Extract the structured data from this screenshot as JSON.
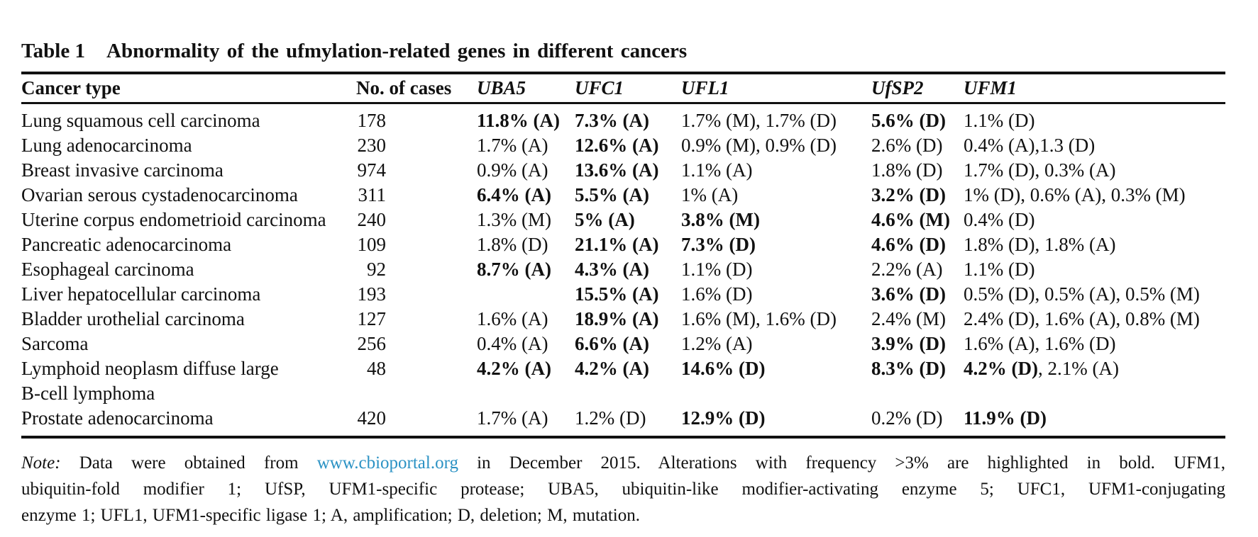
{
  "table": {
    "title_label": "Table 1",
    "title_text": "Abnormality of the ufmylation-related genes in different cancers",
    "columns": [
      {
        "label": "Cancer type",
        "italic": false
      },
      {
        "label": "No. of cases",
        "italic": false
      },
      {
        "label": "UBA5",
        "italic": true
      },
      {
        "label": "UFC1",
        "italic": true
      },
      {
        "label": "UFL1",
        "italic": true
      },
      {
        "label": "UfSP2",
        "italic": true
      },
      {
        "label": "UFM1",
        "italic": true
      }
    ],
    "rows": [
      {
        "cancer_type": "Lung squamous cell carcinoma",
        "cases": "178",
        "UBA5": [
          {
            "text": "11.8% (A)",
            "bold": true
          }
        ],
        "UFC1": [
          {
            "text": "7.3% (A)",
            "bold": true
          }
        ],
        "UFL1": [
          {
            "text": "1.7% (M), 1.7% (D)",
            "bold": false
          }
        ],
        "UfSP2": [
          {
            "text": "5.6% (D)",
            "bold": true
          }
        ],
        "UFM1": [
          {
            "text": "1.1% (D)",
            "bold": false
          }
        ]
      },
      {
        "cancer_type": "Lung adenocarcinoma",
        "cases": "230",
        "UBA5": [
          {
            "text": "1.7% (A)",
            "bold": false
          }
        ],
        "UFC1": [
          {
            "text": "12.6% (A)",
            "bold": true
          }
        ],
        "UFL1": [
          {
            "text": "0.9% (M), 0.9% (D)",
            "bold": false
          }
        ],
        "UfSP2": [
          {
            "text": "2.6% (D)",
            "bold": false
          }
        ],
        "UFM1": [
          {
            "text": "0.4% (A),1.3 (D)",
            "bold": false
          }
        ]
      },
      {
        "cancer_type": "Breast invasive carcinoma",
        "cases": "974",
        "UBA5": [
          {
            "text": "0.9% (A)",
            "bold": false
          }
        ],
        "UFC1": [
          {
            "text": "13.6% (A)",
            "bold": true
          }
        ],
        "UFL1": [
          {
            "text": "1.1% (A)",
            "bold": false
          }
        ],
        "UfSP2": [
          {
            "text": "1.8% (D)",
            "bold": false
          }
        ],
        "UFM1": [
          {
            "text": "1.7% (D), 0.3% (A)",
            "bold": false
          }
        ]
      },
      {
        "cancer_type": "Ovarian serous cystadenocarcinoma",
        "cases": "311",
        "UBA5": [
          {
            "text": "6.4% (A)",
            "bold": true
          }
        ],
        "UFC1": [
          {
            "text": "5.5% (A)",
            "bold": true
          }
        ],
        "UFL1": [
          {
            "text": "1% (A)",
            "bold": false
          }
        ],
        "UfSP2": [
          {
            "text": "3.2% (D)",
            "bold": true
          }
        ],
        "UFM1": [
          {
            "text": "1% (D), 0.6% (A), 0.3% (M)",
            "bold": false
          }
        ]
      },
      {
        "cancer_type": "Uterine corpus endometrioid carcinoma",
        "cases": "240",
        "UBA5": [
          {
            "text": "1.3% (M)",
            "bold": false
          }
        ],
        "UFC1": [
          {
            "text": "5% (A)",
            "bold": true
          }
        ],
        "UFL1": [
          {
            "text": "3.8% (M)",
            "bold": true
          }
        ],
        "UfSP2": [
          {
            "text": "4.6% (M)",
            "bold": true
          }
        ],
        "UFM1": [
          {
            "text": "0.4% (D)",
            "bold": false
          }
        ]
      },
      {
        "cancer_type": "Pancreatic adenocarcinoma",
        "cases": "109",
        "UBA5": [
          {
            "text": "1.8% (D)",
            "bold": false
          }
        ],
        "UFC1": [
          {
            "text": "21.1% (A)",
            "bold": true
          }
        ],
        "UFL1": [
          {
            "text": "7.3% (D)",
            "bold": true
          }
        ],
        "UfSP2": [
          {
            "text": "4.6% (D)",
            "bold": true
          }
        ],
        "UFM1": [
          {
            "text": "1.8% (D), 1.8% (A)",
            "bold": false
          }
        ]
      },
      {
        "cancer_type": "Esophageal carcinoma",
        "cases": "92",
        "UBA5": [
          {
            "text": "8.7% (A)",
            "bold": true
          }
        ],
        "UFC1": [
          {
            "text": "4.3% (A)",
            "bold": true
          }
        ],
        "UFL1": [
          {
            "text": "1.1% (D)",
            "bold": false
          }
        ],
        "UfSP2": [
          {
            "text": "2.2% (A)",
            "bold": false
          }
        ],
        "UFM1": [
          {
            "text": "1.1% (D)",
            "bold": false
          }
        ]
      },
      {
        "cancer_type": "Liver hepatocellular carcinoma",
        "cases": "193",
        "UBA5": [],
        "UFC1": [
          {
            "text": "15.5% (A)",
            "bold": true
          }
        ],
        "UFL1": [
          {
            "text": "1.6% (D)",
            "bold": false
          }
        ],
        "UfSP2": [
          {
            "text": "3.6% (D)",
            "bold": true
          }
        ],
        "UFM1": [
          {
            "text": "0.5% (D), 0.5% (A), 0.5% (M)",
            "bold": false
          }
        ]
      },
      {
        "cancer_type": "Bladder urothelial carcinoma",
        "cases": "127",
        "UBA5": [
          {
            "text": "1.6% (A)",
            "bold": false
          }
        ],
        "UFC1": [
          {
            "text": "18.9% (A)",
            "bold": true
          }
        ],
        "UFL1": [
          {
            "text": "1.6% (M), 1.6% (D)",
            "bold": false
          }
        ],
        "UfSP2": [
          {
            "text": "2.4% (M)",
            "bold": false
          }
        ],
        "UFM1": [
          {
            "text": "2.4% (D), 1.6% (A), 0.8% (M)",
            "bold": false
          }
        ]
      },
      {
        "cancer_type": "Sarcoma",
        "cases": "256",
        "UBA5": [
          {
            "text": "0.4% (A)",
            "bold": false
          }
        ],
        "UFC1": [
          {
            "text": "6.6% (A)",
            "bold": true
          }
        ],
        "UFL1": [
          {
            "text": "1.2% (A)",
            "bold": false
          }
        ],
        "UfSP2": [
          {
            "text": "3.9% (D)",
            "bold": true
          }
        ],
        "UFM1": [
          {
            "text": "1.6% (A), 1.6% (D)",
            "bold": false
          }
        ]
      },
      {
        "cancer_type": "Lymphoid neoplasm diffuse large\nB-cell lymphoma",
        "cases": "48",
        "UBA5": [
          {
            "text": "4.2% (A)",
            "bold": true
          }
        ],
        "UFC1": [
          {
            "text": "4.2% (A)",
            "bold": true
          }
        ],
        "UFL1": [
          {
            "text": "14.6% (D)",
            "bold": true
          }
        ],
        "UfSP2": [
          {
            "text": "8.3% (D)",
            "bold": true
          }
        ],
        "UFM1": [
          {
            "text": "4.2% (D)",
            "bold": true
          },
          {
            "text": ", 2.1% (A)",
            "bold": false
          }
        ]
      },
      {
        "cancer_type": "Prostate adenocarcinoma",
        "cases": "420",
        "UBA5": [
          {
            "text": "1.7% (A)",
            "bold": false
          }
        ],
        "UFC1": [
          {
            "text": "1.2% (D)",
            "bold": false
          }
        ],
        "UFL1": [
          {
            "text": "12.9% (D)",
            "bold": true
          }
        ],
        "UfSP2": [
          {
            "text": "0.2% (D)",
            "bold": false
          }
        ],
        "UFM1": [
          {
            "text": "11.9% (D)",
            "bold": true
          }
        ]
      }
    ]
  },
  "note": {
    "label": "Note:",
    "line1_after_label": "Data were obtained from",
    "link": "www.cbioportal.org",
    "line1_after_link": "in December 2015. Alterations with frequency >3% are highlighted in bold. UFM1,",
    "line2": "ubiquitin-fold modifier 1; UfSP, UFM1-specific protease; UBA5, ubiquitin-like modifier-activating enzyme 5; UFC1, UFM1-conjugating",
    "line3": "enzyme 1; UFL1, UFM1-specific ligase 1; A, amplification; D, deletion; M, mutation.",
    "link_color": "#2b92c4"
  },
  "colors": {
    "text": "#111111",
    "rule": "#111111",
    "background": "#ffffff"
  }
}
